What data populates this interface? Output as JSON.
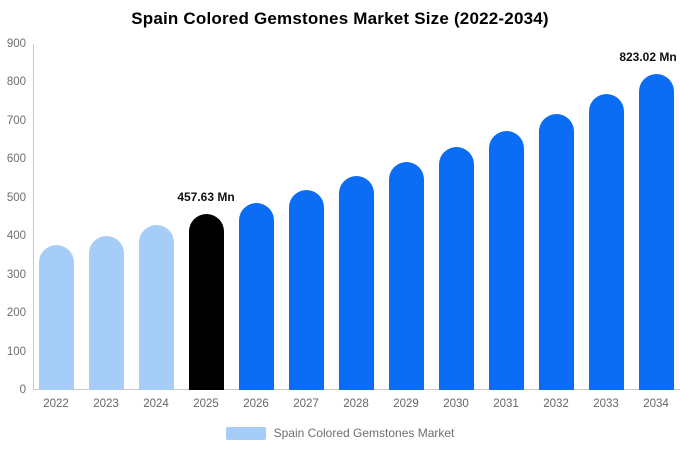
{
  "title": "Spain Colored Gemstones Market Size (2022-2034)",
  "legend": {
    "label": "Spain Colored Gemstones Market"
  },
  "colors": {
    "historical_bar": "#A6CDF8",
    "highlight_bar": "#000000",
    "forecast_bar": "#0B6CF4",
    "axis_line": "#CBCBCB",
    "ytick_text": "#6E6E6E",
    "xtick_text": "#666666",
    "annotation_text": "#111111",
    "title_text": "#000000",
    "background": "#FFFFFF"
  },
  "chart_data": {
    "type": "bar",
    "title": "Spain Colored Gemstones Market Size (2022-2034)",
    "categories": [
      "2022",
      "2023",
      "2024",
      "2025",
      "2026",
      "2027",
      "2028",
      "2029",
      "2030",
      "2031",
      "2032",
      "2033",
      "2034"
    ],
    "series": [
      {
        "name": "Spain Colored Gemstones Market",
        "values": [
          378,
          400,
          429,
          457.63,
          487,
          519,
          556,
          592,
          632,
          675,
          719,
          771,
          823.02
        ]
      }
    ],
    "bar_roles": [
      "historical",
      "historical",
      "historical",
      "highlight",
      "forecast",
      "forecast",
      "forecast",
      "forecast",
      "forecast",
      "forecast",
      "forecast",
      "forecast",
      "forecast"
    ],
    "annotations": [
      {
        "category": "2025",
        "text": "457.63 Mn"
      },
      {
        "category": "2034",
        "text": "823.02 Mn"
      }
    ],
    "unit": "Mn",
    "xlabel": "",
    "ylabel": "",
    "ylim": [
      0,
      900
    ],
    "ytick_step": 100,
    "grid": false,
    "legend_position": "bottom"
  }
}
